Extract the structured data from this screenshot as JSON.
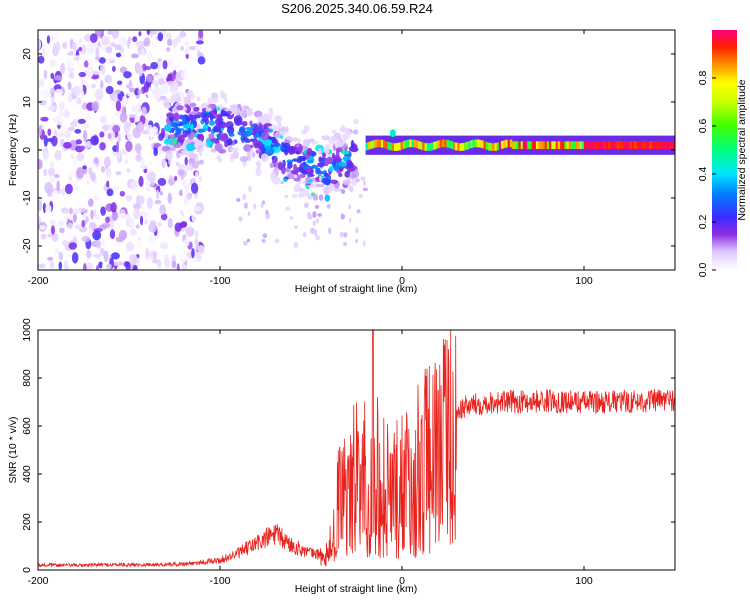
{
  "title": "S206.2025.340.06.59.R24",
  "chart_data": [
    {
      "type": "heatmap",
      "xlabel": "Height of straight line (km)",
      "ylabel": "Frequency (Hz)",
      "xlim": [
        -200,
        150
      ],
      "ylim": [
        -25,
        25
      ],
      "xticks": [
        -200,
        -100,
        0,
        100
      ],
      "yticks": [
        -20,
        -10,
        0,
        10,
        20
      ],
      "colorbar": {
        "label": "Normalized spectral amplitude",
        "range": [
          0,
          1
        ],
        "ticks": [
          0.0,
          0.2,
          0.4,
          0.6,
          0.8
        ],
        "tick_labels": [
          "0.0",
          "0.2",
          "0.4",
          "0.6",
          "0.8"
        ]
      },
      "features": [
        {
          "name": "scattered noise",
          "x_range": [
            -200,
            -130
          ],
          "freq_range": [
            -25,
            25
          ],
          "amplitude": 0.1
        },
        {
          "name": "descending echo",
          "x": [
            -130,
            -100,
            -80,
            -60,
            -40,
            -25
          ],
          "freq": [
            5,
            5,
            3,
            -2,
            -4,
            -1
          ],
          "amplitude": 0.3
        },
        {
          "name": "stable tone",
          "x_range": [
            -20,
            150
          ],
          "freq": 1,
          "amplitude": 0.95
        }
      ]
    },
    {
      "type": "line",
      "xlabel": "Height of straight line (km)",
      "ylabel": "SNR (10 * v/v)",
      "xlim": [
        -200,
        150
      ],
      "ylim": [
        0,
        1000
      ],
      "xticks": [
        -200,
        -100,
        0,
        100
      ],
      "yticks": [
        0,
        200,
        400,
        600,
        800,
        1000
      ],
      "color": "#e8231e",
      "series": [
        {
          "name": "SNR",
          "x": [
            -200,
            -180,
            -160,
            -140,
            -120,
            -100,
            -90,
            -80,
            -70,
            -60,
            -50,
            -42,
            -38,
            -35,
            -30,
            -25,
            -20,
            -17,
            -15,
            -10,
            -5,
            0,
            5,
            10,
            15,
            20,
            25,
            30,
            35,
            40,
            50,
            60,
            80,
            100,
            120,
            150
          ],
          "values": [
            20,
            20,
            22,
            22,
            25,
            40,
            70,
            110,
            150,
            100,
            70,
            60,
            150,
            300,
            380,
            420,
            450,
            600,
            500,
            380,
            350,
            400,
            420,
            470,
            520,
            580,
            630,
            660,
            680,
            690,
            700,
            700,
            705,
            700,
            700,
            710
          ]
        }
      ]
    }
  ]
}
